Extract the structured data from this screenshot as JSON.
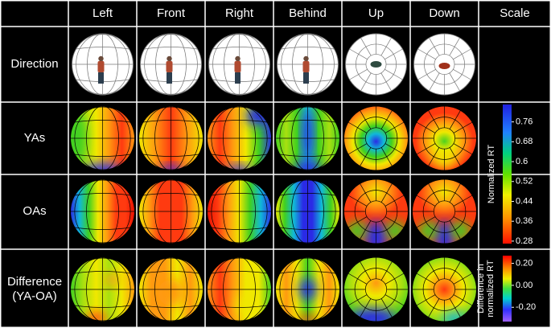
{
  "header": {
    "columns": [
      "Left",
      "Front",
      "Right",
      "Behind",
      "Up",
      "Down",
      "Scale"
    ]
  },
  "rows": [
    [
      "Direction"
    ],
    [
      "YAs"
    ],
    [
      "OAs"
    ],
    [
      "Difference",
      "(YA-OA)"
    ]
  ],
  "scales": [
    {
      "label": [
        "Normalized RT"
      ],
      "lim": [
        0.27,
        0.83
      ],
      "ticks": [
        0.76,
        0.68,
        {
          "value": 0.6,
          "label": "0.6"
        },
        0.52,
        0.44,
        0.36,
        0.28
      ]
    },
    {
      "label": [
        "Difference in",
        "normalized RT"
      ],
      "lim": [
        -0.33,
        0.27
      ],
      "ticks": [
        {
          "value": 0.2,
          "label": "0.20"
        },
        {
          "value": 0,
          "label": "0.00"
        },
        {
          "value": -0.2,
          "label": "-0.20"
        }
      ]
    }
  ]
}
